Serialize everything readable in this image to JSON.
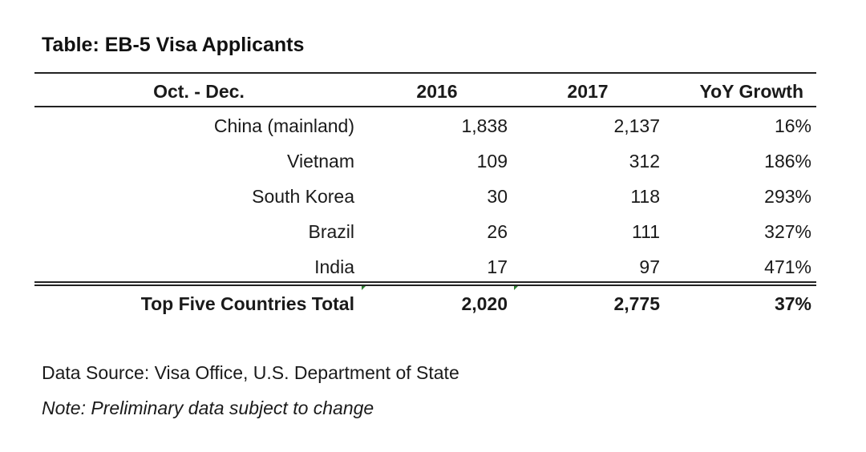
{
  "title": "Table: EB-5 Visa Applicants",
  "chart_data": {
    "type": "table",
    "title": "Table: EB-5 Visa Applicants",
    "columns": [
      "Oct. - Dec.",
      "2016",
      "2017",
      "YoY Growth"
    ],
    "rows": [
      [
        "China (mainland)",
        "1,838",
        "2,137",
        "16%"
      ],
      [
        "Vietnam",
        "109",
        "312",
        "186%"
      ],
      [
        "South Korea",
        "30",
        "118",
        "293%"
      ],
      [
        "Brazil",
        "26",
        "111",
        "327%"
      ],
      [
        "India",
        "17",
        "97",
        "471%"
      ]
    ],
    "total": [
      "Top Five Countries Total",
      "2,020",
      "2,775",
      "37%"
    ]
  },
  "source": "Data Source: Visa Office, U.S. Department of State",
  "note": "Note: Preliminary data subject to change"
}
